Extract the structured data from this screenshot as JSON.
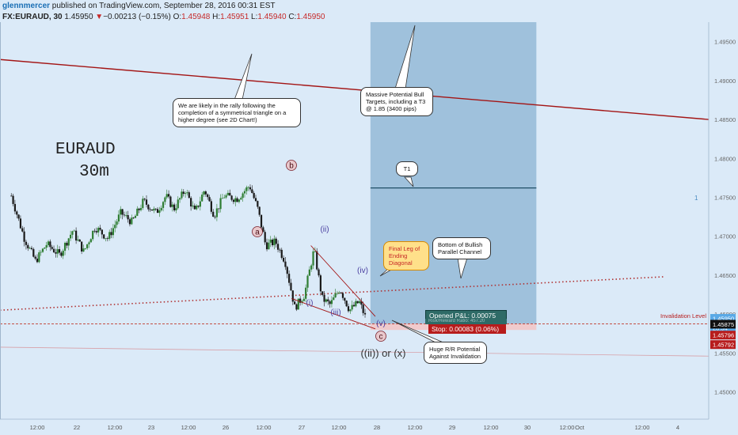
{
  "header": {
    "user": "glennmercer",
    "published": " published on TradingView.com, September 28, 2016 00:31 EST",
    "symbol": "FX:EURAUD, 30",
    "last": "1.45950",
    "arrow": "▼",
    "change": "−0.00213 (−0.15%)",
    "o_label": "O:",
    "o_val": "1.45948",
    "h_label": "H:",
    "h_val": "1.45951",
    "l_label": "L:",
    "l_val": "1.45940",
    "c_label": "C:",
    "c_val": "1.45950"
  },
  "title_line1": "EURAUD",
  "title_line2": "30m",
  "callouts": {
    "symmetrical": "We are likely in the rally following the completion of a symmetrical triangle on a higher degree (see 2D Chart!)",
    "massive": "Massive Potential Bull Targets, including a T3 @ 1.85 (3400 pips)",
    "t1": "T1",
    "final_leg": "Final Leg of Ending Diagonal",
    "bottom_channel": "Bottom of Bullish Parallel Channel",
    "huge_rr": "Huge R/R Potential Against Invalidation"
  },
  "wave_labels": {
    "b": "b",
    "a": "a",
    "c": "c",
    "ii": "(ii)",
    "i": "(i)",
    "iii": "(iii)",
    "iv": "(iv)",
    "v": "(v)",
    "ii_or_x": "((ii)) or (x)"
  },
  "position": {
    "opened_pl": "Opened P&L: 0.00075",
    "hidden_row": "Risk/Reward Ratio: 457.20",
    "stop": "Stop: 0.00083 (0.06%)"
  },
  "invalidation_label": "Invalidation Level",
  "side_marker": "1",
  "price_axis": {
    "ticks": [
      "1.49500",
      "1.49000",
      "1.48500",
      "1.48000",
      "1.47500",
      "1.47000",
      "1.46500",
      "1.46000",
      "1.45500",
      "1.45000"
    ],
    "badges": [
      {
        "value": "1.45950",
        "color": "#5aa9e6",
        "text_color": "#ffffff"
      },
      {
        "value": "28:34",
        "color": "#5aa9e6",
        "text_color": "#ffffff"
      },
      {
        "value": "1.45875",
        "color": "#111111",
        "text_color": "#ffffff"
      },
      {
        "value": "1.45796",
        "color": "#b71c1c",
        "text_color": "#ffffff"
      },
      {
        "value": "1.45792",
        "color": "#b71c1c",
        "text_color": "#ffffff"
      }
    ]
  },
  "time_axis": {
    "labels": [
      "12:00",
      "22",
      "12:00",
      "23",
      "12:00",
      "26",
      "12:00",
      "27",
      "12:00",
      "28",
      "12:00",
      "29",
      "12:00",
      "30",
      "12:00",
      "Oct",
      "12:00",
      "4"
    ]
  },
  "colors": {
    "background": "#dbeaf8",
    "target_zone": "#9fc1dc",
    "trend_line": "#a31515",
    "channel_dotted": "#b03030",
    "candle_up": "#2e7d32",
    "candle_down": "#1a1a1a",
    "t1_line": "#1f4e66"
  },
  "chart_data": {
    "type": "candlestick",
    "symbol": "FX:EURAUD",
    "timeframe": "30",
    "y_range": [
      1.4465,
      1.4975
    ],
    "x_labels": [
      "12:00",
      "22",
      "12:00",
      "23",
      "12:00",
      "26",
      "12:00",
      "27",
      "12:00",
      "28",
      "12:00",
      "29",
      "12:00",
      "30",
      "12:00",
      "Oct",
      "12:00",
      "4"
    ],
    "close_path": [
      {
        "t": 0.0,
        "p": 1.4752
      },
      {
        "t": 0.8,
        "p": 1.4698
      },
      {
        "t": 1.5,
        "p": 1.4668
      },
      {
        "t": 2.2,
        "p": 1.469
      },
      {
        "t": 3.0,
        "p": 1.4676
      },
      {
        "t": 3.8,
        "p": 1.4707
      },
      {
        "t": 4.5,
        "p": 1.468
      },
      {
        "t": 5.2,
        "p": 1.4712
      },
      {
        "t": 6.0,
        "p": 1.4697
      },
      {
        "t": 6.8,
        "p": 1.473
      },
      {
        "t": 7.5,
        "p": 1.4718
      },
      {
        "t": 8.2,
        "p": 1.4745
      },
      {
        "t": 9.0,
        "p": 1.473
      },
      {
        "t": 9.6,
        "p": 1.4752
      },
      {
        "t": 10.1,
        "p": 1.4735
      },
      {
        "t": 10.8,
        "p": 1.476
      },
      {
        "t": 11.4,
        "p": 1.473
      },
      {
        "t": 12.0,
        "p": 1.476
      },
      {
        "t": 12.6,
        "p": 1.4727
      },
      {
        "t": 13.2,
        "p": 1.4752
      },
      {
        "t": 14.0,
        "p": 1.4748
      },
      {
        "t": 14.8,
        "p": 1.4765
      },
      {
        "t": 15.3,
        "p": 1.4735
      },
      {
        "t": 15.8,
        "p": 1.4688
      },
      {
        "t": 16.4,
        "p": 1.4693
      },
      {
        "t": 17.0,
        "p": 1.4668
      },
      {
        "t": 17.6,
        "p": 1.4608
      },
      {
        "t": 18.2,
        "p": 1.4625
      },
      {
        "t": 18.8,
        "p": 1.4683
      },
      {
        "t": 19.3,
        "p": 1.462
      },
      {
        "t": 19.8,
        "p": 1.4612
      },
      {
        "t": 20.4,
        "p": 1.4633
      },
      {
        "t": 21.0,
        "p": 1.4605
      },
      {
        "t": 21.6,
        "p": 1.4616
      },
      {
        "t": 22.0,
        "p": 1.4595
      }
    ],
    "levels": {
      "t1": 1.4762,
      "invalidation": 1.45796,
      "entry": 1.45875,
      "current": 1.4595
    },
    "trend_line": {
      "from": {
        "t": -0.7,
        "p": 1.4927
      },
      "to": {
        "t": 43.3,
        "p": 1.485
      }
    },
    "channel_line": {
      "from": {
        "t": -0.7,
        "p": 1.4605
      },
      "to": {
        "t": 40.6,
        "p": 1.4648
      }
    },
    "target_zone": {
      "t_start": 22.3,
      "t_end": 32.6,
      "p_low": 1.45875,
      "p_high": 1.4975
    }
  }
}
